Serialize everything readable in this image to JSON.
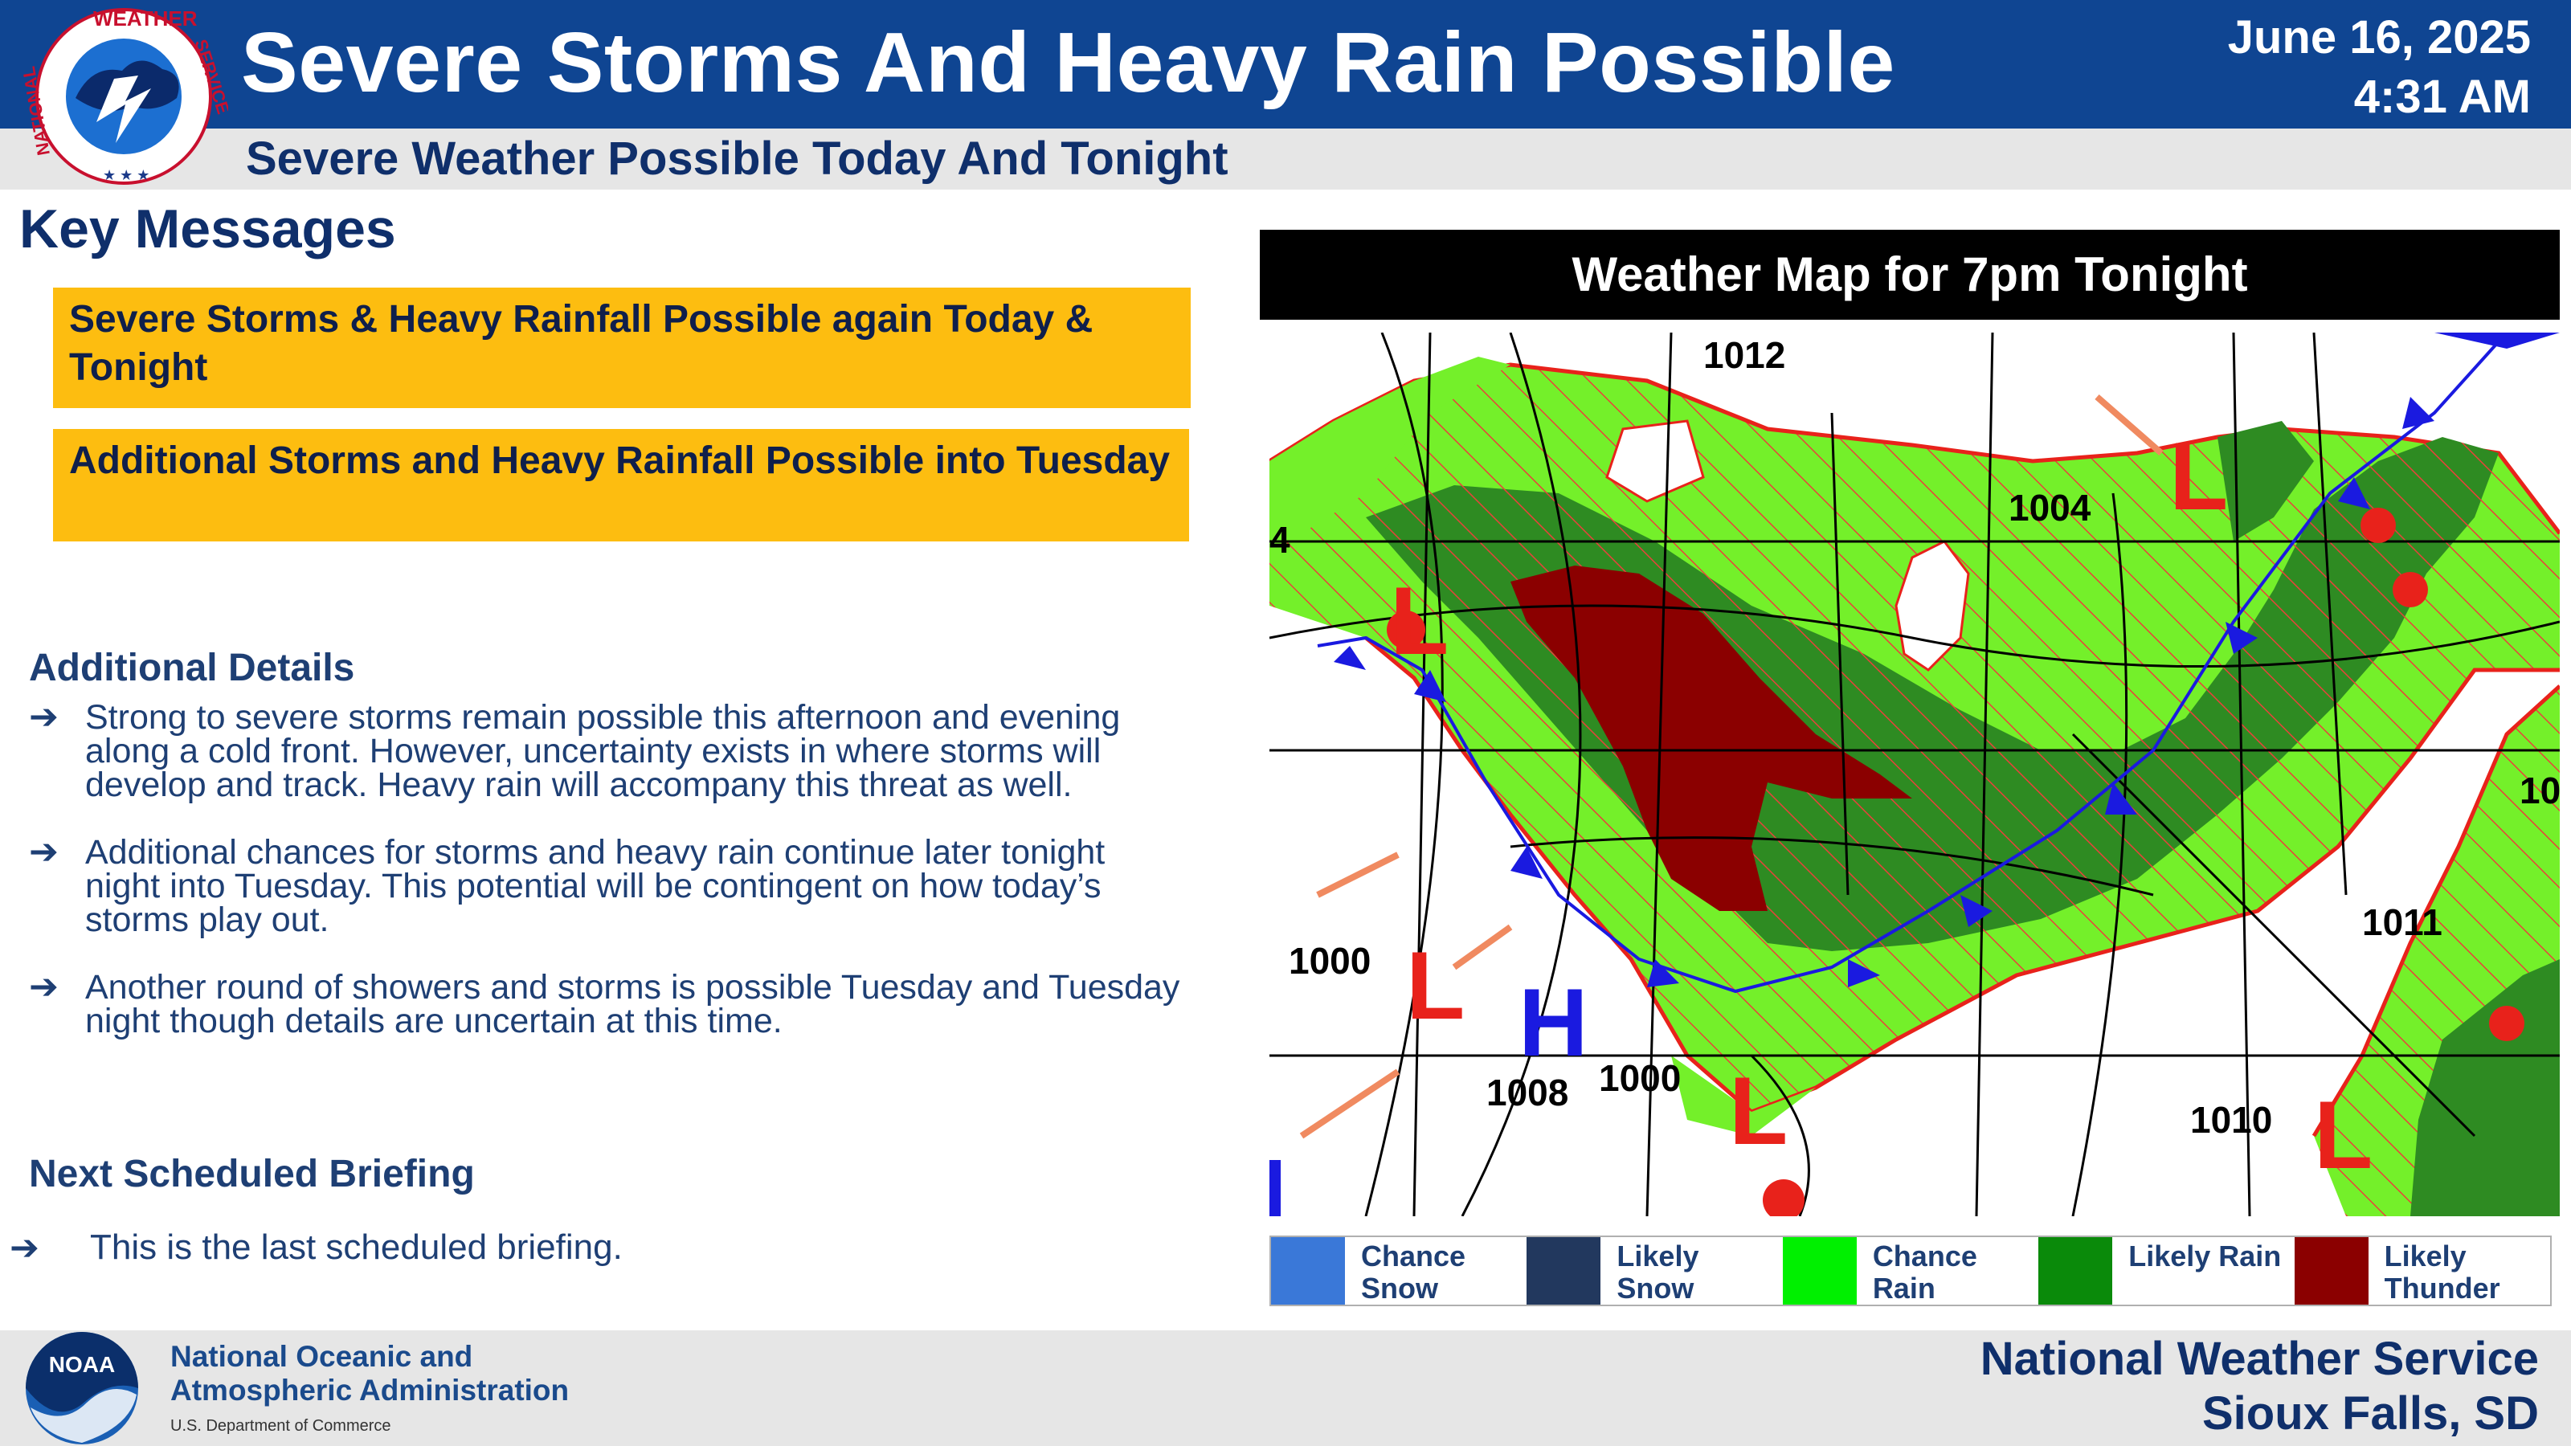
{
  "header": {
    "title": "Severe Storms And Heavy Rain Possible",
    "subtitle": "Severe Weather Possible Today And Tonight",
    "date": "June 16, 2025",
    "time": "4:31 AM",
    "logo": {
      "icon": "nws-logo-icon",
      "text_top": "WEATHER",
      "text_left": "NATIONAL",
      "text_right": "SERVICE"
    }
  },
  "key_messages": {
    "heading": "Key Messages",
    "messages": [
      "Severe Storms & Heavy Rainfall Possible again Today & Tonight",
      "Additional Storms and Heavy Rainfall Possible into Tuesday"
    ],
    "box_color": "#fdbd10"
  },
  "details": {
    "heading": "Additional Details",
    "items": [
      "Strong to severe storms remain possible this afternoon and evening along a cold front. However, uncertainty exists in where storms will develop and track. Heavy rain will accompany this threat as well.",
      "Additional chances for storms and heavy rain continue later tonight night into Tuesday. This potential will be contingent on how today’s storms play out.",
      "Another round of showers and storms is possible Tuesday and Tuesday night though details are uncertain at this time."
    ],
    "arrow": "➔"
  },
  "briefing": {
    "heading": "Next Scheduled Briefing",
    "item": "This is the last scheduled briefing.",
    "arrow": "➔"
  },
  "map": {
    "title": "Weather Map for 7pm Tonight",
    "isobar_labels": [
      "1012",
      "1004",
      "4",
      "10",
      "1000",
      "1008",
      "1000",
      "1011",
      "1010"
    ],
    "pressure_centers": [
      {
        "symbol": "L",
        "color": "#e8221b"
      },
      {
        "symbol": "L",
        "color": "#e8221b"
      },
      {
        "symbol": "L",
        "color": "#e8221b"
      },
      {
        "symbol": "L",
        "color": "#e8221b"
      },
      {
        "symbol": "L",
        "color": "#e8221b"
      },
      {
        "symbol": "H",
        "color": "#1a1ae0"
      }
    ],
    "colors": {
      "chance_rain": "#74f02a",
      "likely_rain": "#2e8b22",
      "likely_thunder": "#8b0000",
      "outline": "#e8221b",
      "cold_front": "#1a1ae0"
    }
  },
  "legend": [
    {
      "label": "Chance Snow",
      "color": "#3a78d8"
    },
    {
      "label": "Likely Snow",
      "color": "#22385e"
    },
    {
      "label": "Chance Rain",
      "color": "#00f000"
    },
    {
      "label": "Likely Rain",
      "color": "#0a8a0a"
    },
    {
      "label": "Likely Thunder",
      "color": "#8b0000"
    }
  ],
  "footer": {
    "noaa_line1": "National Oceanic and",
    "noaa_line2": "Atmospheric Administration",
    "noaa_dept": "U.S. Department of Commerce",
    "noaa_logo_text": "NOAA",
    "office_line1": "National Weather Service",
    "office_line2": "Sioux Falls, SD"
  }
}
